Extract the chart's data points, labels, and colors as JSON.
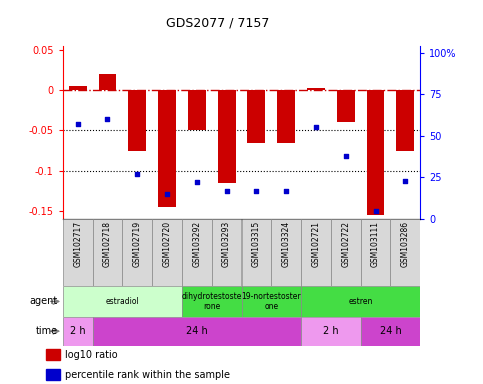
{
  "title": "GDS2077 / 7157",
  "samples": [
    "GSM102717",
    "GSM102718",
    "GSM102719",
    "GSM102720",
    "GSM103292",
    "GSM103293",
    "GSM103315",
    "GSM103324",
    "GSM102721",
    "GSM102722",
    "GSM103111",
    "GSM103286"
  ],
  "log10_ratio": [
    0.005,
    0.02,
    -0.075,
    -0.145,
    -0.05,
    -0.115,
    -0.065,
    -0.065,
    0.003,
    -0.04,
    -0.155,
    -0.075
  ],
  "percentile_rank": [
    57,
    60,
    27,
    15,
    22,
    17,
    17,
    17,
    55,
    38,
    5,
    23
  ],
  "ylim_left": [
    -0.16,
    0.055
  ],
  "ylim_right": [
    0,
    104
  ],
  "yticks_left": [
    -0.15,
    -0.1,
    -0.05,
    0,
    0.05
  ],
  "yticks_right": [
    0,
    25,
    50,
    75,
    100
  ],
  "ytick_labels_left": [
    "-0.15",
    "-0.1",
    "-0.05",
    "0",
    "0.05"
  ],
  "ytick_labels_right": [
    "0",
    "25",
    "50",
    "75",
    "100%"
  ],
  "bar_color": "#cc0000",
  "dot_color": "#0000cc",
  "agent_groups": [
    {
      "label": "estradiol",
      "start": 0,
      "end": 4,
      "color": "#ccffcc"
    },
    {
      "label": "dihydrotestoste\nrone",
      "start": 4,
      "end": 6,
      "color": "#44dd44"
    },
    {
      "label": "19-nortestoster\none",
      "start": 6,
      "end": 8,
      "color": "#44dd44"
    },
    {
      "label": "estren",
      "start": 8,
      "end": 12,
      "color": "#44dd44"
    }
  ],
  "time_groups": [
    {
      "label": "2 h",
      "start": 0,
      "end": 1,
      "color": "#ee99ee"
    },
    {
      "label": "24 h",
      "start": 1,
      "end": 8,
      "color": "#cc44cc"
    },
    {
      "label": "2 h",
      "start": 8,
      "end": 10,
      "color": "#ee99ee"
    },
    {
      "label": "24 h",
      "start": 10,
      "end": 12,
      "color": "#cc44cc"
    }
  ],
  "legend_bar_label": "log10 ratio",
  "legend_dot_label": "percentile rank within the sample",
  "background_color": "#ffffff"
}
